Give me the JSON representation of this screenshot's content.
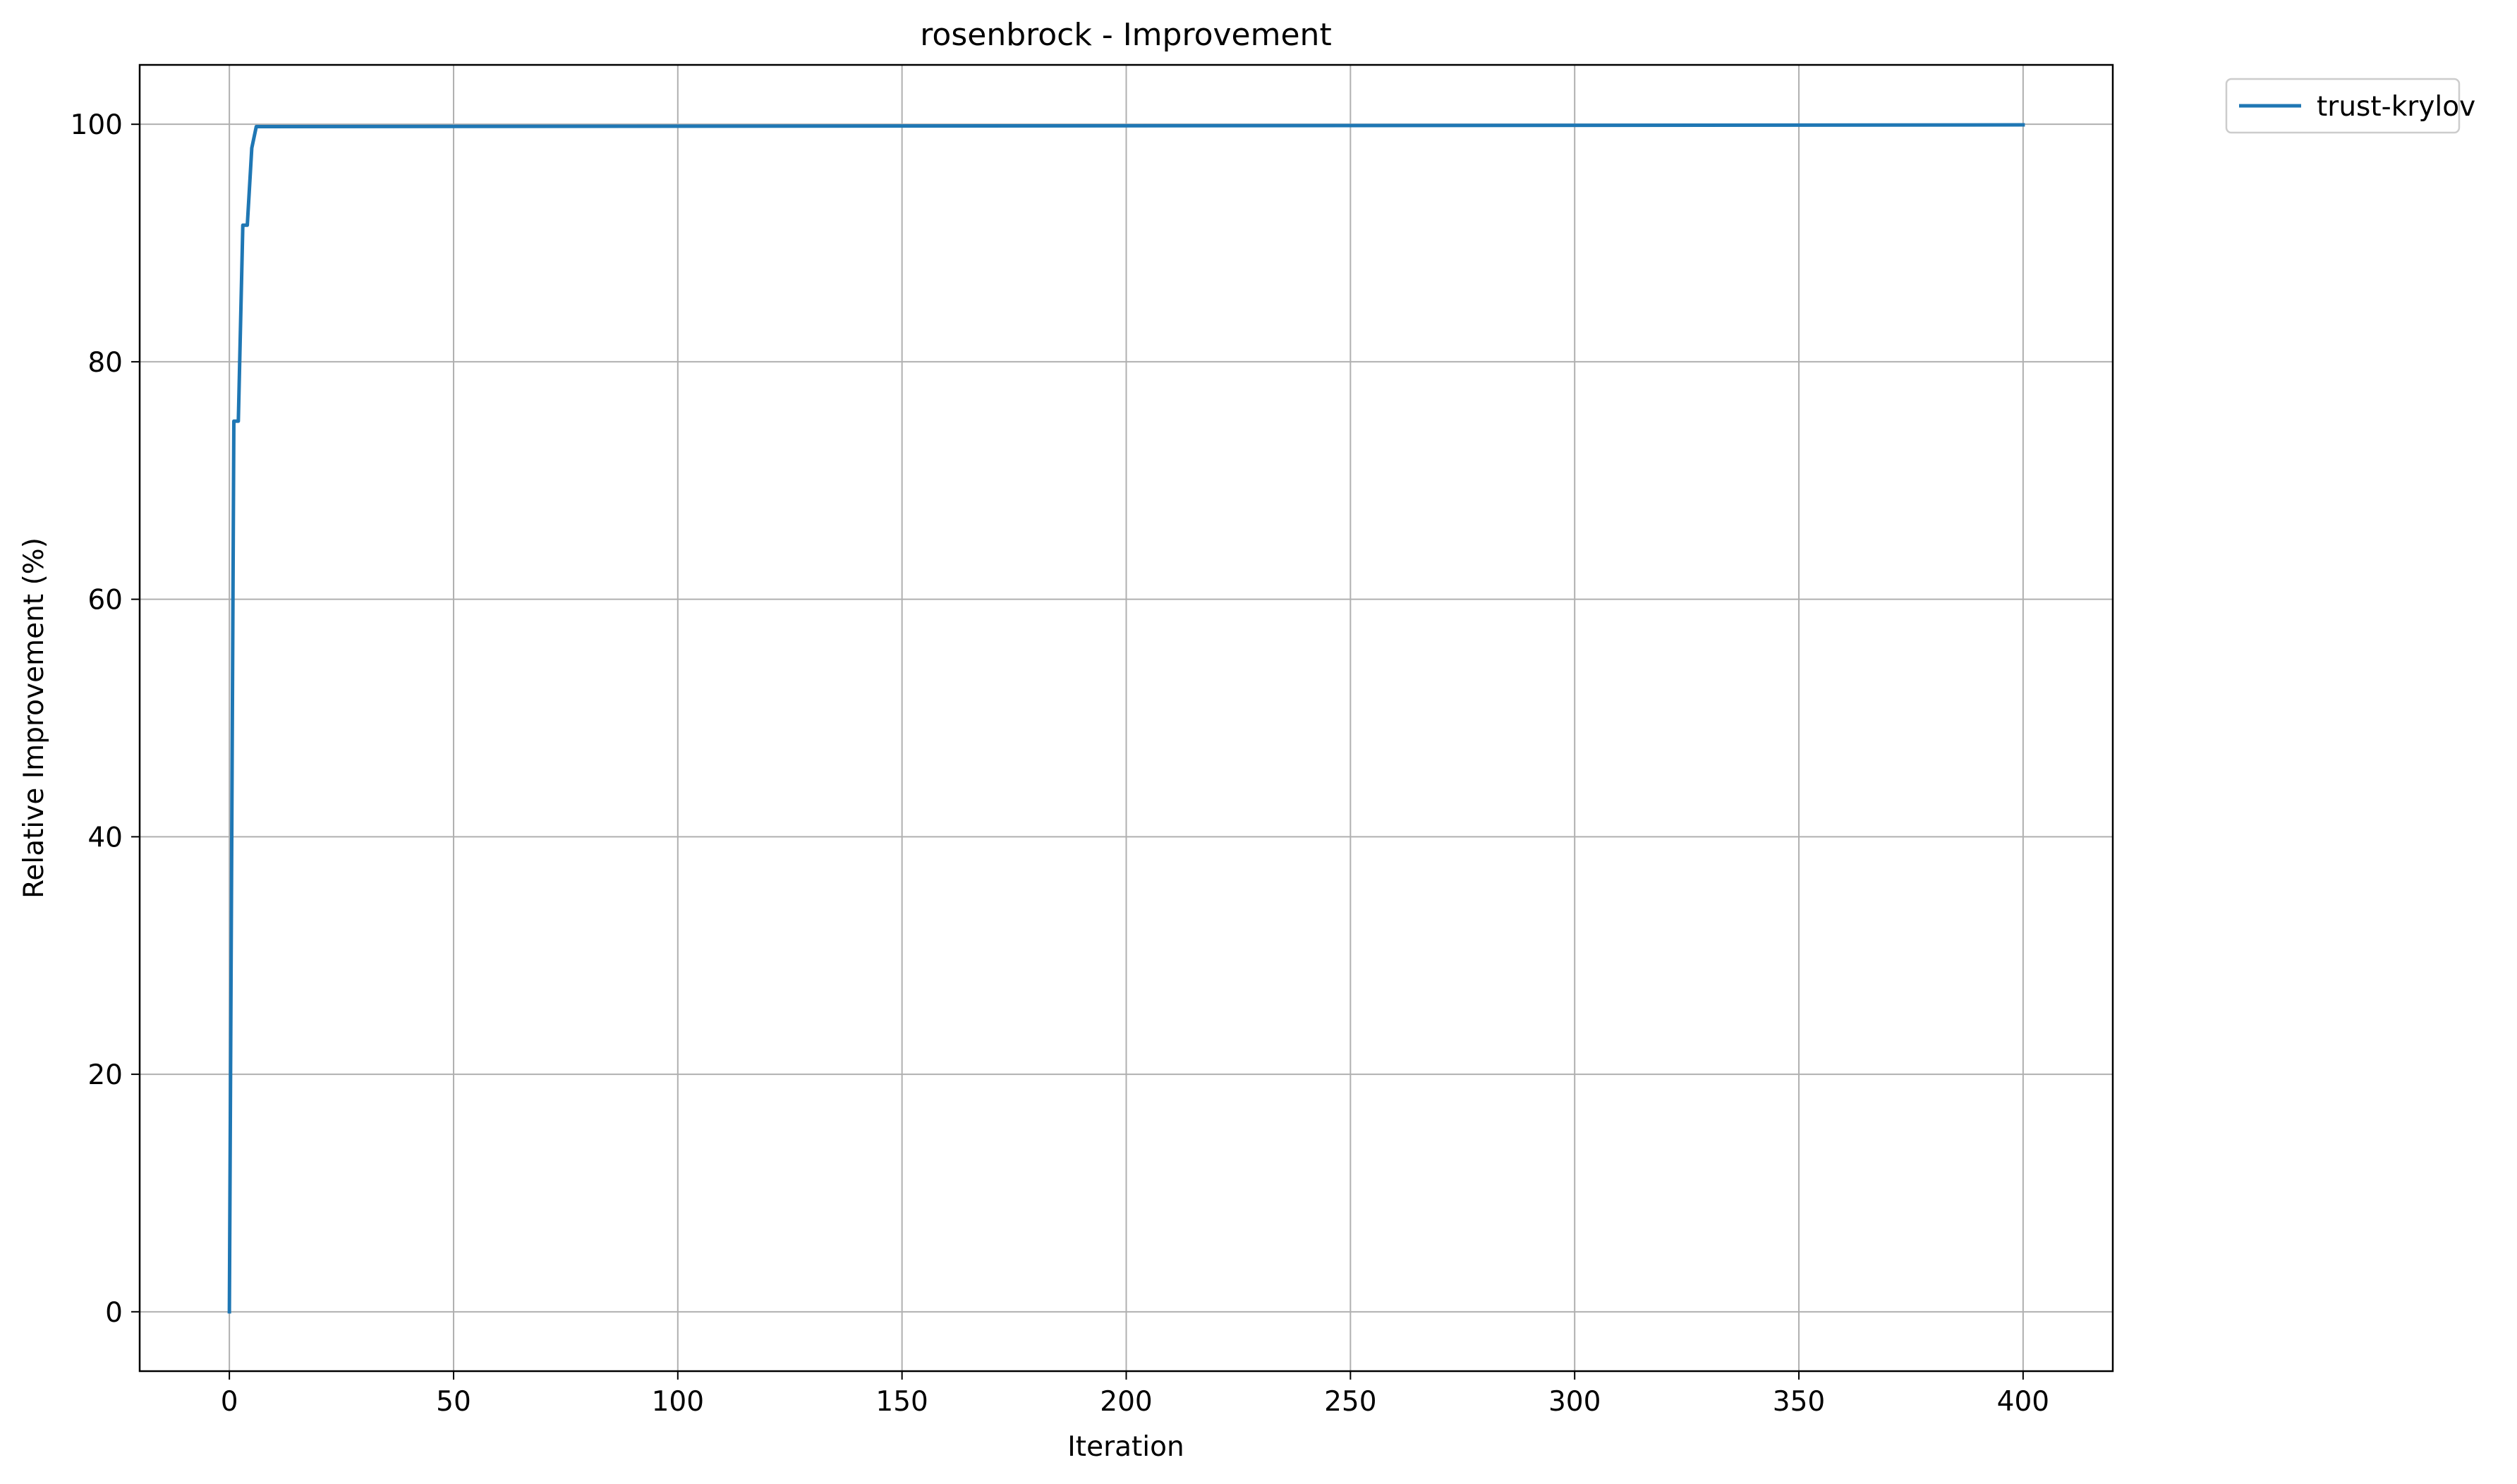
{
  "chart_data": {
    "type": "line",
    "title": "rosenbrock - Improvement",
    "xlabel": "Iteration",
    "ylabel": "Relative Improvement (%)",
    "xlim": [
      -20,
      420
    ],
    "ylim": [
      -5,
      105
    ],
    "xticks": [
      0,
      50,
      100,
      150,
      200,
      250,
      300,
      350,
      400
    ],
    "yticks": [
      0,
      20,
      40,
      60,
      80,
      100
    ],
    "grid": true,
    "legend_position": "outside-top-right",
    "series": [
      {
        "name": "trust-krylov",
        "color": "#1f77b4",
        "x": [
          0,
          1,
          2,
          3,
          4,
          5,
          6,
          400
        ],
        "y": [
          0,
          75.0,
          75.0,
          91.5,
          91.5,
          98.0,
          99.8,
          99.95
        ]
      }
    ]
  }
}
